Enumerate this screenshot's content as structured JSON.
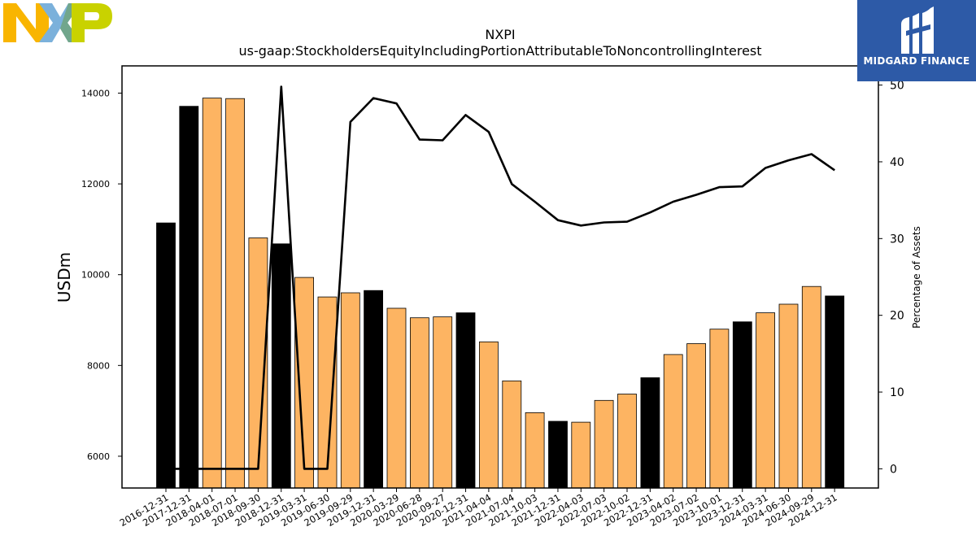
{
  "brand": {
    "left_logo": "NXP",
    "right_logo_name": "MIDGARD FINANCE",
    "colors": {
      "nxp_yellow": "#f9b500",
      "nxp_blue": "#7bb1db",
      "nxp_green": "#c9d200",
      "midgard_blue": "#2d5aa7"
    }
  },
  "chart_data": {
    "type": "bar",
    "title": "NXPI",
    "subtitle": "us-gaap:StockholdersEquityIncludingPortionAttributableToNoncontrollingInterest",
    "ylabel": "USDm",
    "y2label": "Percentage of Assets",
    "ylim": [
      5300,
      14600
    ],
    "y2lim": [
      -2.5,
      52.5
    ],
    "yticks": [
      "6000",
      "8000",
      "10000",
      "12000",
      "14000"
    ],
    "y2ticks": [
      "0",
      "10",
      "20",
      "30",
      "40",
      "50"
    ],
    "grid": false,
    "categories": [
      "2016-12-31",
      "2017-12-31",
      "2018-04-01",
      "2018-07-01",
      "2018-09-30",
      "2018-12-31",
      "2019-03-31",
      "2019-06-30",
      "2019-09-29",
      "2019-12-31",
      "2020-03-29",
      "2020-06-28",
      "2020-09-27",
      "2020-12-31",
      "2021-04-04",
      "2021-07-04",
      "2021-10-03",
      "2021-12-31",
      "2022-04-03",
      "2022-07-03",
      "2022-10-02",
      "2022-12-31",
      "2023-04-02",
      "2023-07-02",
      "2023-10-01",
      "2023-12-31",
      "2024-03-31",
      "2024-06-30",
      "2024-09-29",
      "2024-12-31"
    ],
    "series": [
      {
        "type": "bar",
        "values": [
          11140,
          13710,
          13890,
          13880,
          10810,
          10680,
          9940,
          9510,
          9600,
          9650,
          9260,
          9050,
          9070,
          9160,
          8520,
          7660,
          6960,
          6770,
          6750,
          7230,
          7370,
          7730,
          8240,
          8480,
          8800,
          8960,
          9160,
          9350,
          9740,
          9530
        ],
        "annual": [
          true,
          true,
          false,
          false,
          false,
          true,
          false,
          false,
          false,
          true,
          false,
          false,
          false,
          true,
          false,
          false,
          false,
          true,
          false,
          false,
          false,
          true,
          false,
          false,
          false,
          true,
          false,
          false,
          false,
          true
        ],
        "colors": {
          "annual": "#000000",
          "quarterly": "#fdb462"
        }
      },
      {
        "type": "line",
        "axis": "right",
        "values": [
          0.0,
          0.0,
          0.0,
          0.0,
          0.0,
          49.8,
          0.0,
          0.0,
          45.2,
          48.3,
          47.6,
          42.9,
          42.8,
          46.1,
          43.9,
          37.1,
          34.8,
          32.4,
          31.7,
          32.1,
          32.2,
          33.4,
          34.8,
          35.7,
          36.7,
          36.8,
          39.2,
          40.2,
          41.0,
          38.9
        ],
        "color": "#000000"
      }
    ]
  }
}
